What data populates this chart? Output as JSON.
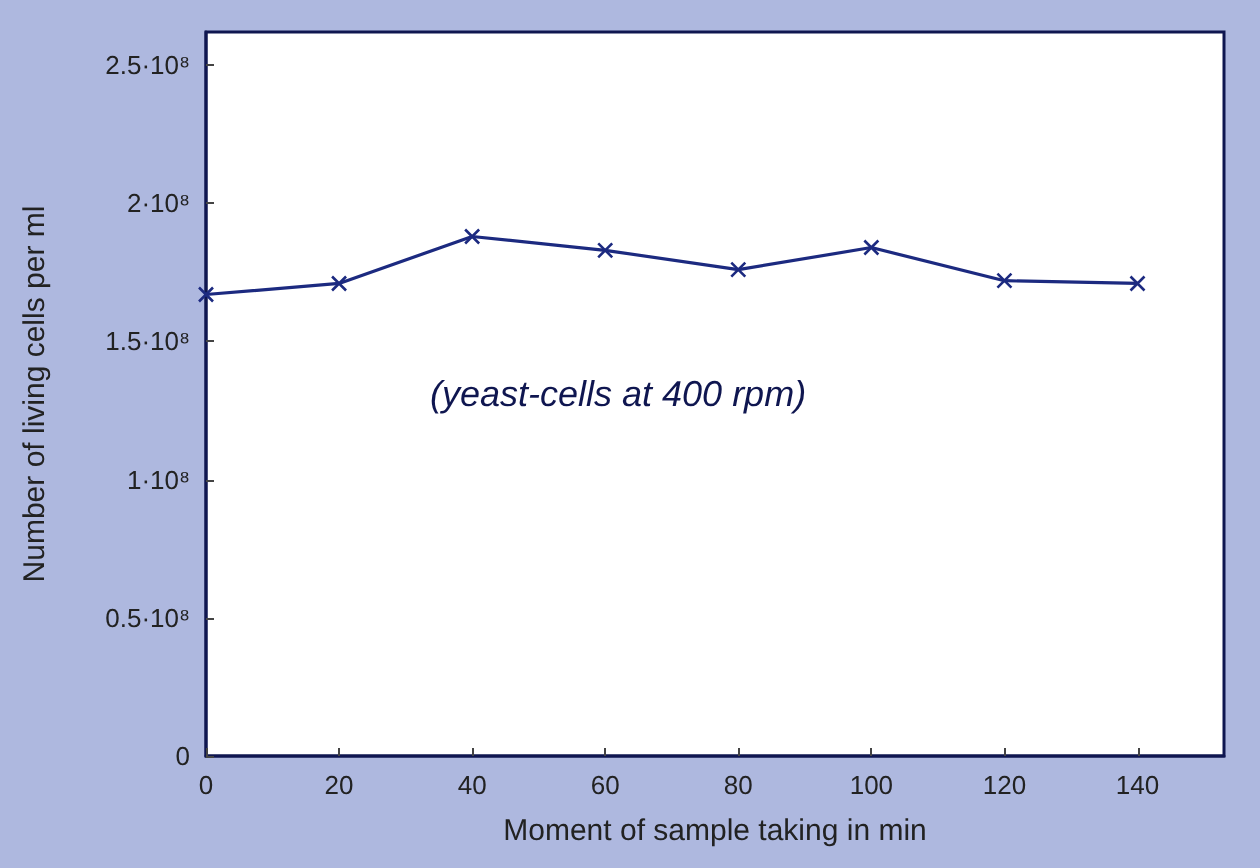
{
  "chart_data": {
    "type": "line",
    "xlabel": "Moment of sample taking in min",
    "ylabel": "Number of living cells per ml",
    "annotations": [
      "(yeast-cells at 400 rpm)"
    ],
    "x": [
      0,
      20,
      40,
      60,
      80,
      100,
      120,
      140
    ],
    "series": [
      {
        "color": "#1c2a80",
        "values": [
          167000000,
          171000000,
          188000000,
          183000000,
          176000000,
          184000000,
          172000000,
          171000000
        ]
      }
    ],
    "xlim": [
      0,
      153
    ],
    "xticks": [
      0,
      20,
      40,
      60,
      80,
      100,
      120,
      140
    ],
    "ylim": [
      0,
      262000000
    ],
    "yticks": [
      {
        "value": 0,
        "label": "0"
      },
      {
        "value": 50000000,
        "label": "0.5·10⁸"
      },
      {
        "value": 100000000,
        "label": "1·10⁸"
      },
      {
        "value": 150000000,
        "label": "1.5·10⁸"
      },
      {
        "value": 200000000,
        "label": "2·10⁸"
      },
      {
        "value": 250000000,
        "label": "2.5·10⁸"
      }
    ],
    "grid": false,
    "marker": "cross",
    "line_style": "solid"
  }
}
